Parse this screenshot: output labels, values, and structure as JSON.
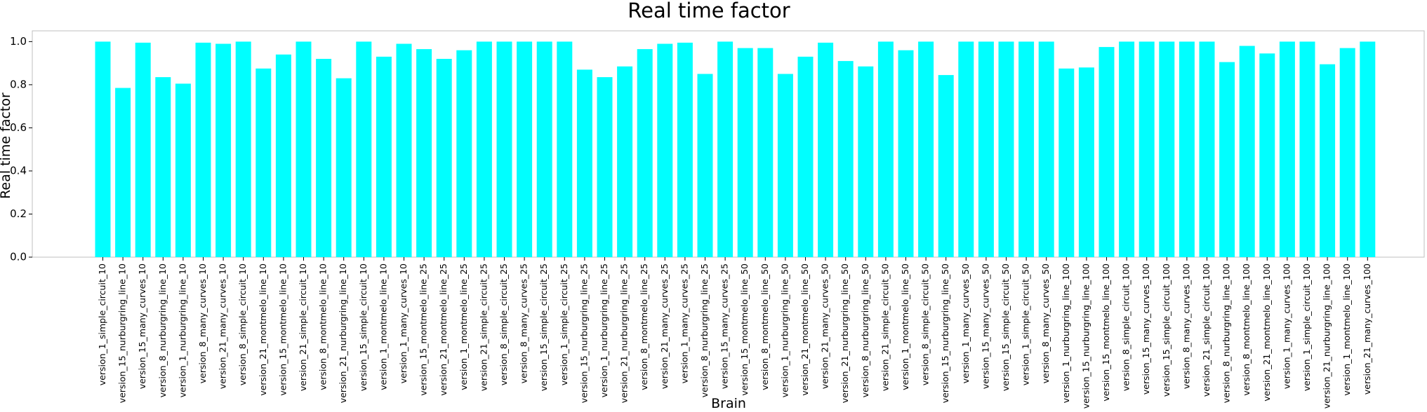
{
  "chart_data": {
    "type": "bar",
    "title": "Real time factor",
    "xlabel": "Brain",
    "ylabel": "Real time factor",
    "ylim": [
      0,
      1.05
    ],
    "yticks": [
      "0.0",
      "0.2",
      "0.4",
      "0.6",
      "0.8",
      "1.0"
    ],
    "bar_color": "#00FFFF",
    "grid": false,
    "categories": [
      "version_1_simple_circuit_10",
      "version_15_nurburgring_line_10",
      "version_15_many_curves_10",
      "version_8_nurburgring_line_10",
      "version_1_nurburgring_line_10",
      "version_8_many_curves_10",
      "version_21_many_curves_10",
      "version_8_simple_circuit_10",
      "version_21_montmelo_line_10",
      "version_15_montmelo_line_10",
      "version_21_simple_circuit_10",
      "version_8_montmelo_line_10",
      "version_21_nurburgring_line_10",
      "version_15_simple_circuit_10",
      "version_1_montmelo_line_10",
      "version_1_many_curves_10",
      "version_15_montmelo_line_25",
      "version_21_montmelo_line_25",
      "version_1_montmelo_line_25",
      "version_21_simple_circuit_25",
      "version_8_simple_circuit_25",
      "version_8_many_curves_25",
      "version_15_simple_circuit_25",
      "version_1_simple_circuit_25",
      "version_15_nurburgring_line_25",
      "version_1_nurburgring_line_25",
      "version_21_nurburgring_line_25",
      "version_8_montmelo_line_25",
      "version_21_many_curves_25",
      "version_1_many_curves_25",
      "version_8_nurburgring_line_25",
      "version_15_many_curves_25",
      "version_15_montmelo_line_50",
      "version_8_montmelo_line_50",
      "version_1_nurburgring_line_50",
      "version_21_montmelo_line_50",
      "version_21_many_curves_50",
      "version_21_nurburgring_line_50",
      "version_8_nurburgring_line_50",
      "version_21_simple_circuit_50",
      "version_1_montmelo_line_50",
      "version_8_simple_circuit_50",
      "version_15_nurburgring_line_50",
      "version_1_many_curves_50",
      "version_15_many_curves_50",
      "version_15_simple_circuit_50",
      "version_1_simple_circuit_50",
      "version_8_many_curves_50",
      "version_1_nurburgring_line_100",
      "version_15_nurburgring_line_100",
      "version_15_montmelo_line_100",
      "version_8_simple_circuit_100",
      "version_15_many_curves_100",
      "version_15_simple_circuit_100",
      "version_8_many_curves_100",
      "version_21_simple_circuit_100",
      "version_8_nurburgring_line_100",
      "version_8_montmelo_line_100",
      "version_21_montmelo_line_100",
      "version_1_many_curves_100",
      "version_1_simple_circuit_100",
      "version_21_nurburgring_line_100",
      "version_1_montmelo_line_100",
      "version_21_many_curves_100"
    ],
    "values": [
      1.0,
      0.785,
      0.995,
      0.835,
      0.805,
      0.995,
      0.99,
      1.0,
      0.875,
      0.94,
      1.0,
      0.92,
      0.83,
      1.0,
      0.93,
      0.99,
      0.965,
      0.92,
      0.96,
      1.0,
      1.0,
      1.0,
      1.0,
      1.0,
      0.87,
      0.835,
      0.885,
      0.965,
      0.99,
      0.995,
      0.85,
      1.0,
      0.97,
      0.97,
      0.85,
      0.93,
      0.995,
      0.91,
      0.885,
      1.0,
      0.96,
      1.0,
      0.845,
      1.0,
      1.0,
      1.0,
      1.0,
      1.0,
      0.875,
      0.88,
      0.975,
      1.0,
      1.0,
      1.0,
      1.0,
      1.0,
      0.905,
      0.98,
      0.945,
      1.0,
      1.0,
      0.895,
      0.97,
      1.0
    ]
  }
}
